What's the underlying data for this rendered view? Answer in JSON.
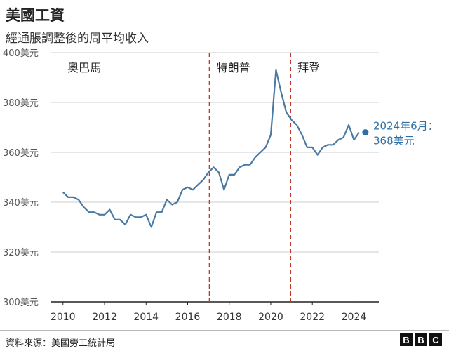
{
  "title": "美國工資",
  "subtitle": "經通脹調整後的周平均收入",
  "source": "資料來源：美國勞工統計局",
  "logo": [
    "B",
    "B",
    "C"
  ],
  "colors": {
    "line": "#4a7aa3",
    "divider": "#c0392b",
    "grid": "#cccccc",
    "axis": "#222222",
    "callout": "#2f6fa6"
  },
  "chart_data": {
    "type": "line",
    "title": "美國工資",
    "subtitle": "經通脹調整後的周平均收入",
    "xlabel": "",
    "ylabel": "",
    "xlim": [
      2009.4,
      2025.2
    ],
    "ylim": [
      300,
      400
    ],
    "yticks": [
      300,
      320,
      340,
      360,
      380,
      400
    ],
    "ytick_labels": [
      "300美元",
      "320美元",
      "340美元",
      "360美元",
      "380美元",
      "400美元"
    ],
    "xticks": [
      2010,
      2012,
      2014,
      2016,
      2018,
      2020,
      2022,
      2024
    ],
    "xtick_labels": [
      "2010",
      "2012",
      "2014",
      "2016",
      "2018",
      "2020",
      "2022",
      "2024"
    ],
    "grid": true,
    "series": [
      {
        "points": [
          [
            2010.0,
            344
          ],
          [
            2010.25,
            342
          ],
          [
            2010.5,
            342
          ],
          [
            2010.75,
            341
          ],
          [
            2011.0,
            338
          ],
          [
            2011.25,
            336
          ],
          [
            2011.5,
            336
          ],
          [
            2011.75,
            335
          ],
          [
            2012.0,
            335
          ],
          [
            2012.25,
            337
          ],
          [
            2012.5,
            333
          ],
          [
            2012.75,
            333
          ],
          [
            2013.0,
            331
          ],
          [
            2013.25,
            335
          ],
          [
            2013.5,
            334
          ],
          [
            2013.75,
            334
          ],
          [
            2014.0,
            335
          ],
          [
            2014.25,
            330
          ],
          [
            2014.5,
            336
          ],
          [
            2014.75,
            336
          ],
          [
            2015.0,
            341
          ],
          [
            2015.25,
            339
          ],
          [
            2015.5,
            340
          ],
          [
            2015.75,
            345
          ],
          [
            2016.0,
            346
          ],
          [
            2016.25,
            345
          ],
          [
            2016.5,
            347
          ],
          [
            2016.75,
            349
          ],
          [
            2017.0,
            352
          ],
          [
            2017.25,
            354
          ],
          [
            2017.5,
            352
          ],
          [
            2017.75,
            345
          ],
          [
            2018.0,
            351
          ],
          [
            2018.25,
            351
          ],
          [
            2018.5,
            354
          ],
          [
            2018.75,
            355
          ],
          [
            2019.0,
            355
          ],
          [
            2019.25,
            358
          ],
          [
            2019.5,
            360
          ],
          [
            2019.75,
            362
          ],
          [
            2020.0,
            367
          ],
          [
            2020.25,
            393
          ],
          [
            2020.5,
            384
          ],
          [
            2020.75,
            376
          ],
          [
            2021.0,
            373
          ],
          [
            2021.25,
            371
          ],
          [
            2021.5,
            367
          ],
          [
            2021.75,
            362
          ],
          [
            2022.0,
            362
          ],
          [
            2022.25,
            359
          ],
          [
            2022.5,
            362
          ],
          [
            2022.75,
            363
          ],
          [
            2023.0,
            363
          ],
          [
            2023.25,
            365
          ],
          [
            2023.5,
            366
          ],
          [
            2023.75,
            371
          ],
          [
            2024.0,
            365
          ],
          [
            2024.25,
            368
          ]
        ]
      }
    ],
    "periods": [
      {
        "label": "奧巴馬",
        "start": 2009.4,
        "end": 2017.05
      },
      {
        "label": "特朗普",
        "start": 2017.05,
        "end": 2020.95
      },
      {
        "label": "拜登",
        "start": 2020.95,
        "end": 2025.2
      }
    ],
    "dividers": [
      2017.05,
      2020.95
    ],
    "annotation": {
      "line1": "2024年6月：",
      "line2": "368美元",
      "x": 2024.25,
      "y": 368
    }
  }
}
